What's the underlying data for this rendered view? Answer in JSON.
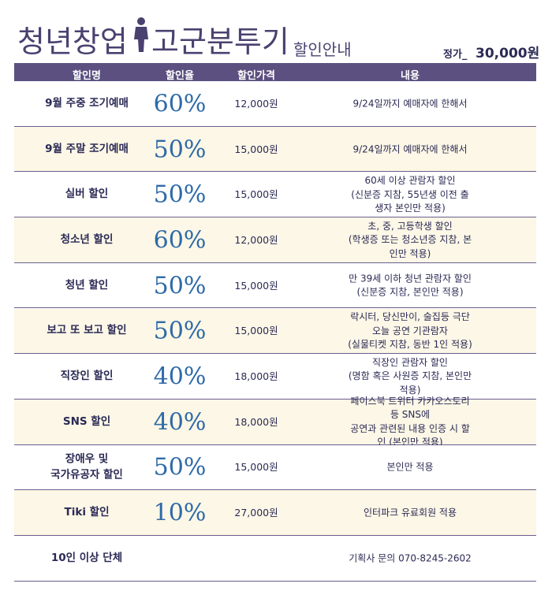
{
  "header": {
    "title_left": "청년창업",
    "title_right": "고군분투기",
    "subtitle": "할인안내",
    "price_label": "정가_",
    "price": "30,000원"
  },
  "table": {
    "columns": [
      "할인명",
      "할인율",
      "할인가격",
      "내용"
    ],
    "rows": [
      {
        "name": [
          "9월 주중 조기예매"
        ],
        "rate": "60%",
        "price": "12,000원",
        "content": [
          "9/24일까지 예매자에 한해서"
        ]
      },
      {
        "name": [
          "9월 주말 조기예매"
        ],
        "rate": "50%",
        "price": "15,000원",
        "content": [
          "9/24일까지 예매자에 한해서"
        ]
      },
      {
        "name": [
          "실버 할인"
        ],
        "rate": "50%",
        "price": "15,000원",
        "content": [
          "60세 이상 관람자 할인",
          "(신분증 지참, 55년생 이전 출생자 본인만 적용)"
        ]
      },
      {
        "name": [
          "청소년 할인"
        ],
        "rate": "60%",
        "price": "12,000원",
        "content": [
          "초, 중, 고등학생 할인",
          "(학생증 또는 청소년증 지참, 본인만 적용)"
        ]
      },
      {
        "name": [
          "청년 할인"
        ],
        "rate": "50%",
        "price": "15,000원",
        "content": [
          "만 39세 이하 청년 관람자 할인",
          "(신분증 지참, 본인만 적용)"
        ]
      },
      {
        "name": [
          "보고 또 보고 할인"
        ],
        "rate": "50%",
        "price": "15,000원",
        "content": [
          "락시터, 당신만이, 술집등 극단 오늘 공연 기관람자",
          "(실물티켓 지참, 동반 1인 적용)"
        ]
      },
      {
        "name": [
          "직장인 할인"
        ],
        "rate": "40%",
        "price": "18,000원",
        "content": [
          "직장인 관람자 할인",
          "(명함 혹은 사원증 지참, 본인만 적용)"
        ]
      },
      {
        "name": [
          "SNS 할인"
        ],
        "rate": "40%",
        "price": "18,000원",
        "content": [
          "페이스북 트위터 카카오스토리등 SNS에",
          "공연과 관련된 내용 인증 시 할인 (본인만 적용)"
        ]
      },
      {
        "name": [
          "장애우 및",
          "국가유공자 할인"
        ],
        "rate": "50%",
        "price": "15,000원",
        "content": [
          "본인만 적용"
        ]
      },
      {
        "name": [
          "Tiki 할인"
        ],
        "rate": "10%",
        "price": "27,000원",
        "content": [
          "인터파크 유료회원 적용"
        ]
      },
      {
        "name": [
          "10인 이상 단체"
        ],
        "content": [
          "기획사 문의 070-8245-2602"
        ]
      }
    ]
  }
}
